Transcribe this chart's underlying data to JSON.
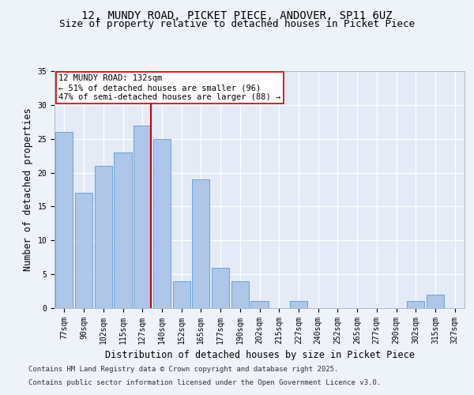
{
  "title_line1": "12, MUNDY ROAD, PICKET PIECE, ANDOVER, SP11 6UZ",
  "title_line2": "Size of property relative to detached houses in Picket Piece",
  "xlabel": "Distribution of detached houses by size in Picket Piece",
  "ylabel": "Number of detached properties",
  "categories": [
    "77sqm",
    "90sqm",
    "102sqm",
    "115sqm",
    "127sqm",
    "140sqm",
    "152sqm",
    "165sqm",
    "177sqm",
    "190sqm",
    "202sqm",
    "215sqm",
    "227sqm",
    "240sqm",
    "252sqm",
    "265sqm",
    "277sqm",
    "290sqm",
    "302sqm",
    "315sqm",
    "327sqm"
  ],
  "values": [
    26,
    17,
    21,
    23,
    27,
    25,
    4,
    19,
    6,
    4,
    1,
    0,
    1,
    0,
    0,
    0,
    0,
    0,
    1,
    2,
    0
  ],
  "bar_color": "#aec6e8",
  "bar_edge_color": "#5b9bd5",
  "reference_line_index": 4,
  "reference_line_color": "#cc0000",
  "annotation_box_text": "12 MUNDY ROAD: 132sqm\n← 51% of detached houses are smaller (96)\n47% of semi-detached houses are larger (88) →",
  "ylim": [
    0,
    35
  ],
  "yticks": [
    0,
    5,
    10,
    15,
    20,
    25,
    30,
    35
  ],
  "footer_line1": "Contains HM Land Registry data © Crown copyright and database right 2025.",
  "footer_line2": "Contains public sector information licensed under the Open Government Licence v3.0.",
  "background_color": "#eef2f9",
  "plot_bg_color": "#e4eaf6",
  "grid_color": "#ffffff",
  "title_fontsize": 10,
  "subtitle_fontsize": 9,
  "tick_fontsize": 7,
  "label_fontsize": 8.5,
  "footer_fontsize": 6.5,
  "annotation_fontsize": 7.5
}
